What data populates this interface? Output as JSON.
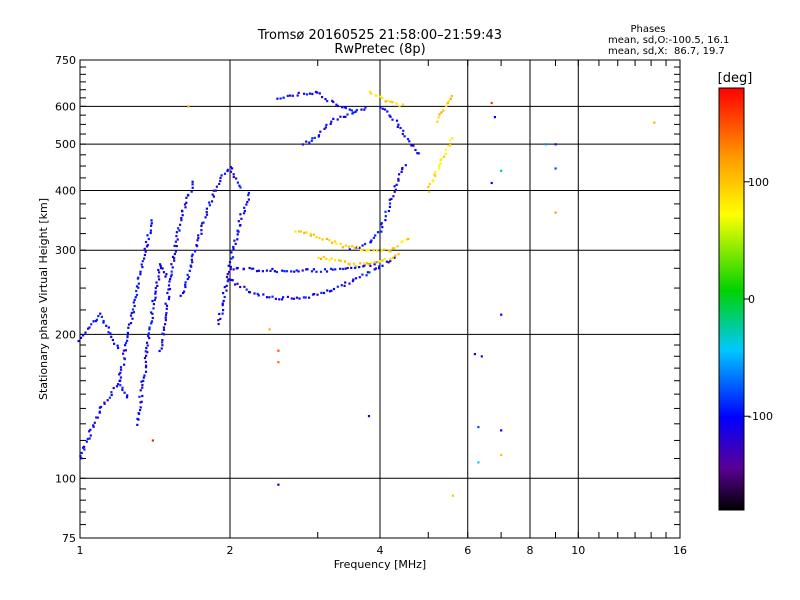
{
  "chart_data": {
    "type": "scatter",
    "title": "Tromsø 20160525 21:58:00–21:59:43",
    "subtitle": "RwPretec (8p)",
    "xlabel": "Frequency [MHz]",
    "ylabel": "Stationary phase Virtual Height [km]",
    "x_scale": "log",
    "y_scale": "log",
    "xlim": [
      1,
      16
    ],
    "ylim": [
      75,
      750
    ],
    "x_ticks": [
      1,
      2,
      4,
      6,
      8,
      10,
      16
    ],
    "x_tick_labels": [
      "1",
      "2",
      "4",
      "6",
      "8",
      "10",
      "16"
    ],
    "y_ticks": [
      75,
      100,
      200,
      300,
      400,
      500,
      600,
      750
    ],
    "y_tick_labels": [
      "75",
      "100",
      "200",
      "300",
      "400",
      "500",
      "600",
      "750"
    ],
    "grid": true,
    "phase_stats": {
      "title": "Phases",
      "line1": "mean, sd,O:-100.5, 16.1",
      "line2": "mean, sd,X:  86.7, 19.7"
    },
    "colorbar": {
      "label": "[deg]",
      "min": -180,
      "max": 180,
      "ticks": [
        100,
        0,
        -100
      ],
      "tick_labels": [
        "100",
        "0",
        "-100"
      ]
    },
    "traces": [
      {
        "x": [
          1.0,
          1.05,
          1.1,
          1.15,
          1.2
        ],
        "y": [
          195,
          210,
          220,
          200,
          185
        ],
        "phase": -105
      },
      {
        "x": [
          1.0,
          1.05,
          1.1,
          1.15,
          1.2,
          1.25
        ],
        "y": [
          110,
          125,
          140,
          150,
          160,
          145
        ],
        "phase": -105
      },
      {
        "x": [
          1.2,
          1.25,
          1.3,
          1.35,
          1.4
        ],
        "y": [
          160,
          200,
          250,
          300,
          350
        ],
        "phase": -105
      },
      {
        "x": [
          1.3,
          1.35,
          1.4,
          1.45,
          1.5
        ],
        "y": [
          130,
          170,
          230,
          280,
          260
        ],
        "phase": -105
      },
      {
        "x": [
          1.45,
          1.5,
          1.55,
          1.6,
          1.7
        ],
        "y": [
          185,
          240,
          300,
          360,
          420
        ],
        "phase": -105
      },
      {
        "x": [
          1.6,
          1.7,
          1.8,
          1.9,
          2.0,
          2.1
        ],
        "y": [
          240,
          300,
          360,
          420,
          450,
          400
        ],
        "phase": -105
      },
      {
        "x": [
          1.9,
          2.0,
          2.1,
          2.2
        ],
        "y": [
          210,
          280,
          350,
          400
        ],
        "phase": -105
      },
      {
        "x": [
          2.0,
          2.5,
          3.0,
          3.5,
          4.0
        ],
        "y": [
          275,
          272,
          272,
          275,
          282
        ],
        "phase": -105
      },
      {
        "x": [
          2.0,
          2.2,
          2.5,
          2.8,
          3.2,
          3.7,
          4.3
        ],
        "y": [
          260,
          245,
          238,
          238,
          248,
          265,
          290
        ],
        "phase": -105
      },
      {
        "x": [
          3.5,
          3.8,
          4.0,
          4.2,
          4.5
        ],
        "y": [
          300,
          310,
          330,
          380,
          460
        ],
        "phase": -105
      },
      {
        "x": [
          2.5,
          2.8,
          3.0,
          3.3,
          3.6
        ],
        "y": [
          620,
          640,
          640,
          600,
          580
        ],
        "phase": -105
      },
      {
        "x": [
          2.8,
          3.0,
          3.2,
          3.5,
          3.8
        ],
        "y": [
          500,
          520,
          560,
          580,
          600
        ],
        "phase": -105
      },
      {
        "x": [
          4.0,
          4.3,
          4.6,
          4.8
        ],
        "y": [
          600,
          560,
          500,
          470
        ],
        "phase": -105
      },
      {
        "x": [
          2.7,
          3.0,
          3.4,
          3.8,
          4.2,
          4.6
        ],
        "y": [
          330,
          320,
          305,
          300,
          300,
          320
        ],
        "phase": 90
      },
      {
        "x": [
          3.0,
          3.3,
          3.6,
          4.0,
          4.4
        ],
        "y": [
          290,
          285,
          280,
          285,
          295
        ],
        "phase": 95
      },
      {
        "x": [
          5.0,
          5.2,
          5.4,
          5.6
        ],
        "y": [
          400,
          440,
          480,
          520
        ],
        "phase": 85
      },
      {
        "x": [
          5.2,
          5.4,
          5.6
        ],
        "y": [
          560,
          600,
          640
        ],
        "phase": 95
      },
      {
        "x": [
          3.8,
          4.0,
          4.2,
          4.5
        ],
        "y": [
          640,
          625,
          610,
          600
        ],
        "phase": 95
      }
    ],
    "points": [
      {
        "x": 2.5,
        "y": 97,
        "phase": -100
      },
      {
        "x": 5.6,
        "y": 92,
        "phase": 100
      },
      {
        "x": 6.2,
        "y": 182,
        "phase": -100
      },
      {
        "x": 6.4,
        "y": 180,
        "phase": -130
      },
      {
        "x": 6.3,
        "y": 128,
        "phase": -80
      },
      {
        "x": 6.3,
        "y": 108,
        "phase": -40
      },
      {
        "x": 7.0,
        "y": 126,
        "phase": -100
      },
      {
        "x": 7.0,
        "y": 112,
        "phase": 100
      },
      {
        "x": 6.7,
        "y": 610,
        "phase": 160
      },
      {
        "x": 6.8,
        "y": 570,
        "phase": -100
      },
      {
        "x": 6.7,
        "y": 415,
        "phase": -100
      },
      {
        "x": 7.0,
        "y": 440,
        "phase": -20
      },
      {
        "x": 7.0,
        "y": 220,
        "phase": -100
      },
      {
        "x": 8.6,
        "y": 500,
        "phase": -60
      },
      {
        "x": 9.0,
        "y": 500,
        "phase": -100
      },
      {
        "x": 9.0,
        "y": 445,
        "phase": -80
      },
      {
        "x": 9.0,
        "y": 360,
        "phase": 120
      },
      {
        "x": 14.2,
        "y": 555,
        "phase": 110
      },
      {
        "x": 2.5,
        "y": 185,
        "phase": 150
      },
      {
        "x": 2.5,
        "y": 175,
        "phase": 140
      },
      {
        "x": 2.4,
        "y": 205,
        "phase": 110
      },
      {
        "x": 3.8,
        "y": 135,
        "phase": -100
      },
      {
        "x": 1.4,
        "y": 120,
        "phase": 170
      },
      {
        "x": 1.65,
        "y": 600,
        "phase": 110
      }
    ]
  }
}
